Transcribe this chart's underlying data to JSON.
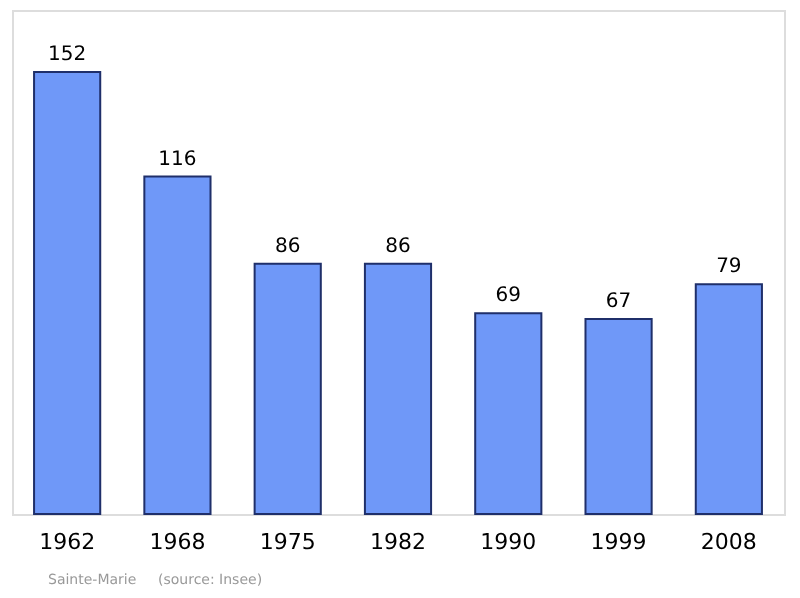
{
  "chart_data": {
    "type": "bar",
    "categories": [
      "1962",
      "1968",
      "1975",
      "1982",
      "1990",
      "1999",
      "2008"
    ],
    "values": [
      152,
      116,
      86,
      86,
      69,
      67,
      79
    ],
    "color": "#6f98f8",
    "data_labels": true,
    "grid": false,
    "annotations": [
      "Sainte-Marie",
      "(source: Insee)"
    ]
  }
}
